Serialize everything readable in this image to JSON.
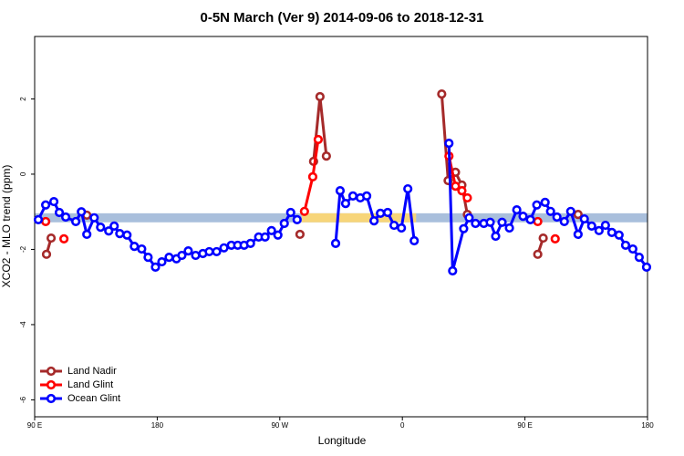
{
  "chart_data": {
    "type": "line",
    "title": "0-5N March (Ver 9)   2014-09-06 to 2018-12-31",
    "x_label": "Longitude",
    "y_label": "XCO2 - MLO trend (ppm)",
    "xlim": [
      90,
      540
    ],
    "xticks": [
      {
        "value": 90,
        "label": "90 E"
      },
      {
        "value": 180,
        "label": "180"
      },
      {
        "value": 270,
        "label": "90 W"
      },
      {
        "value": 360,
        "label": "0"
      },
      {
        "value": 450,
        "label": "90 E"
      },
      {
        "value": 540,
        "label": "180"
      }
    ],
    "ylim": [
      -6.45,
      3.66
    ],
    "yticks": [
      -6,
      -4,
      -2,
      0,
      2
    ],
    "legend": "bottomleft",
    "bands": [
      {
        "xmin": 90,
        "xmax": 540,
        "ymin": -1.28,
        "ymax": -1.04,
        "color": "#a9bfdc"
      },
      {
        "xmin": 286.1,
        "xmax": 370.1,
        "ymin": -1.28,
        "ymax": -1.04,
        "color": "#f7d57a"
      }
    ],
    "series": [
      {
        "name": "Land Nadir",
        "color": "#a52a2a",
        "x": [
          98.7,
          102.1,
          null,
          128.3,
          null,
          284.8,
          null,
          294.8,
          299.5,
          304.2,
          null,
          388.9,
          393.6,
          399.0,
          403.7,
          407.7,
          null,
          459.4,
          463.4,
          null,
          489.0
        ],
        "values": [
          -2.13,
          -1.7,
          null,
          -1.09,
          null,
          -1.6,
          null,
          0.34,
          2.06,
          0.48,
          null,
          2.13,
          -0.17,
          0.05,
          -0.29,
          -1.07,
          null,
          -2.13,
          -1.7,
          null,
          -1.07
        ]
      },
      {
        "name": "Land Glint",
        "color": "#ff0000",
        "x": [
          98.1,
          null,
          111.5,
          null,
          288.1,
          294.2,
          298.2,
          null,
          394.2,
          399.0,
          403.7,
          407.7,
          null,
          459.4,
          null,
          472.2
        ],
        "values": [
          -1.26,
          null,
          -1.72,
          null,
          -0.99,
          -0.07,
          0.92,
          null,
          0.48,
          -0.32,
          -0.44,
          -0.63,
          null,
          -1.26,
          null,
          -1.72
        ]
      },
      {
        "name": "Ocean Glint",
        "color": "#0000ff",
        "x": [
          92.7,
          98.1,
          104.1,
          108.1,
          112.8,
          120.2,
          124.3,
          128.3,
          133.7,
          138.4,
          144.4,
          148.4,
          152.5,
          157.8,
          163.2,
          168.6,
          173.3,
          178.7,
          183.4,
          188.7,
          194.1,
          198.1,
          202.8,
          208.2,
          213.5,
          218.2,
          223.6,
          229.0,
          234.4,
          239.1,
          243.8,
          248.5,
          254.5,
          259.2,
          263.9,
          268.6,
          273.3,
          278.0,
          282.7,
          null,
          311.0,
          314.3,
          318.3,
          323.7,
          329.1,
          333.8,
          339.2,
          343.9,
          349.2,
          353.9,
          359.3,
          364.0,
          368.7,
          null,
          394.2,
          396.9,
          405.0,
          409.0,
          413.7,
          419.8,
          424.5,
          428.5,
          433.2,
          438.6,
          444.0,
          448.6,
          454.0,
          458.7,
          464.8,
          468.8,
          473.5,
          478.9,
          483.6,
          489.0,
          493.6,
          499.0,
          504.4,
          509.1,
          513.8,
          519.1,
          523.9,
          529.2,
          533.9,
          539.3
        ],
        "values": [
          -1.21,
          -0.82,
          -0.73,
          -1.02,
          -1.14,
          -1.26,
          -1.0,
          -1.6,
          -1.16,
          -1.41,
          -1.51,
          -1.38,
          -1.58,
          -1.62,
          -1.92,
          -1.99,
          -2.21,
          -2.47,
          -2.33,
          -2.21,
          -2.25,
          -2.16,
          -2.04,
          -2.16,
          -2.11,
          -2.06,
          -2.06,
          -1.96,
          -1.89,
          -1.89,
          -1.89,
          -1.84,
          -1.67,
          -1.67,
          -1.5,
          -1.62,
          -1.31,
          -1.02,
          -1.21,
          null,
          -1.84,
          -0.44,
          -0.78,
          -0.58,
          -0.63,
          -0.58,
          -1.24,
          -1.04,
          -1.02,
          -1.36,
          -1.43,
          -0.39,
          -1.77,
          null,
          0.82,
          -2.57,
          -1.45,
          -1.16,
          -1.31,
          -1.31,
          -1.28,
          -1.65,
          -1.28,
          -1.43,
          -0.95,
          -1.12,
          -1.21,
          -0.82,
          -0.75,
          -0.99,
          -1.14,
          -1.26,
          -0.99,
          -1.6,
          -1.19,
          -1.38,
          -1.5,
          -1.36,
          -1.55,
          -1.62,
          -1.89,
          -1.99,
          -2.21,
          -2.47
        ]
      }
    ]
  }
}
